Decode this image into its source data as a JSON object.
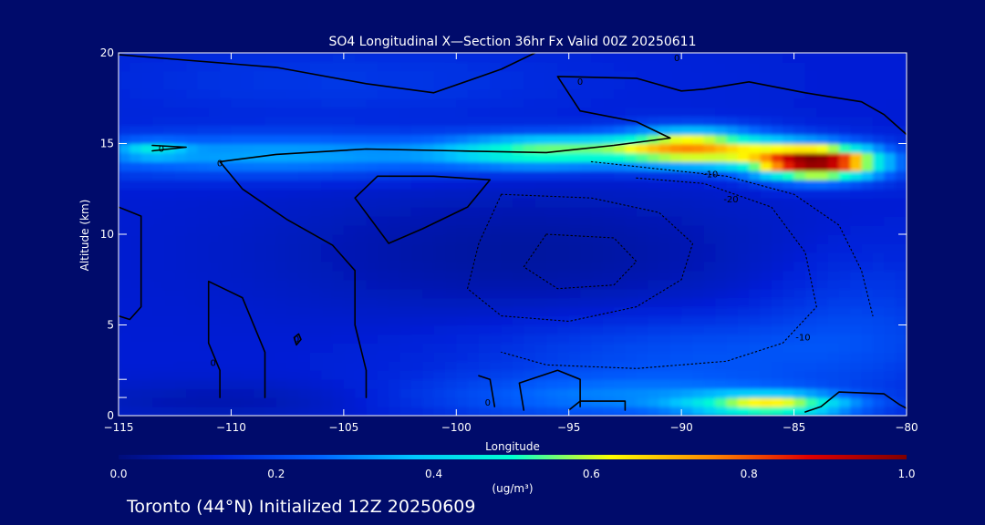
{
  "colors": {
    "background": "#000b6b",
    "foreground": "#ffffff",
    "contour": "#000000"
  },
  "chart_data": {
    "type": "heatmap",
    "title": "SO4 Longitudinal X—Section 36hr  Fx Valid 00Z 20250611",
    "xlabel": "Longitude",
    "ylabel": "Altitude (km)",
    "xlim": [
      -115,
      -80
    ],
    "ylim": [
      0,
      20
    ],
    "x_ticks": [
      -115,
      -110,
      -105,
      -100,
      -95,
      -90,
      -85,
      -80
    ],
    "x_tick_labels": [
      "−115",
      "−110",
      "−105",
      "−100",
      "−95",
      "−90",
      "−85",
      "−80"
    ],
    "y_ticks": [
      0,
      5,
      10,
      15,
      20
    ],
    "y_tick_labels": [
      "0",
      "5",
      "10",
      "15",
      "20"
    ],
    "y_minor_ticks": [
      1,
      2
    ],
    "colorbar": {
      "label": "(ug/m³)",
      "range": [
        0,
        1
      ],
      "ticks": [
        0.0,
        0.2,
        0.4,
        0.6,
        0.8,
        1.0
      ],
      "tick_labels": [
        "0.0",
        "0.2",
        "0.4",
        "0.6",
        "0.8",
        "1.0"
      ],
      "colormap": [
        "#000d7a",
        "#0020d8",
        "#0060ff",
        "#00c8ff",
        "#00ffd0",
        "#ffff00",
        "#ff8c00",
        "#e00000",
        "#800000"
      ]
    },
    "field": {
      "background_value": 0.12,
      "features": [
        {
          "name": "upper-plume-core",
          "lon": -84,
          "alt": 14.0,
          "sigma_lon": 2.0,
          "sigma_alt": 0.65,
          "value": 0.9
        },
        {
          "name": "upper-plume-mid",
          "lon": -89.5,
          "alt": 14.8,
          "sigma_lon": 2.5,
          "sigma_alt": 0.7,
          "value": 0.58
        },
        {
          "name": "upper-plume-west",
          "lon": -96,
          "alt": 14.6,
          "sigma_lon": 3.0,
          "sigma_alt": 0.6,
          "value": 0.36
        },
        {
          "name": "upper-band-west",
          "lon": -108,
          "alt": 14.4,
          "sigma_lon": 8.0,
          "sigma_alt": 0.8,
          "value": 0.22
        },
        {
          "name": "upper-band-tip",
          "lon": -113.5,
          "alt": 14.7,
          "sigma_lon": 1.0,
          "sigma_alt": 0.3,
          "value": 0.18
        },
        {
          "name": "boundary-layer-east",
          "lon": -86,
          "alt": 0.6,
          "sigma_lon": 2.5,
          "sigma_alt": 0.45,
          "value": 0.45
        },
        {
          "name": "boundary-layer-mid",
          "lon": -93,
          "alt": 1.0,
          "sigma_lon": 6.0,
          "sigma_alt": 0.9,
          "value": 0.15
        },
        {
          "name": "lower-layer",
          "lon": -89,
          "alt": 3.5,
          "sigma_lon": 7.0,
          "sigma_alt": 1.5,
          "value": 0.1
        },
        {
          "name": "mid-tropo-east",
          "lon": -82,
          "alt": 6.0,
          "sigma_lon": 3.0,
          "sigma_alt": 2.5,
          "value": 0.06
        },
        {
          "name": "stratosphere-west",
          "lon": -105,
          "alt": 18.5,
          "sigma_lon": 8.0,
          "sigma_alt": 1.5,
          "value": 0.05
        },
        {
          "name": "clean-core-mid",
          "lon": -97,
          "alt": 9.0,
          "sigma_lon": 8.0,
          "sigma_alt": 2.5,
          "value": -0.07
        },
        {
          "name": "clean-surface-west",
          "lon": -110,
          "alt": 0.8,
          "sigma_lon": 5.0,
          "sigma_alt": 0.8,
          "value": -0.05
        }
      ]
    },
    "contours": [
      {
        "value": 0,
        "style": "solid",
        "label": "0",
        "points": [
          [
            -115,
            19.9
          ],
          [
            -112,
            19.6
          ],
          [
            -108,
            19.2
          ],
          [
            -104,
            18.3
          ],
          [
            -101,
            17.8
          ],
          [
            -98,
            19.1
          ],
          [
            -96.5,
            20
          ]
        ]
      },
      {
        "value": 0,
        "style": "solid",
        "label": "0",
        "points": [
          [
            -113.5,
            14.6
          ],
          [
            -112,
            14.8
          ],
          [
            -113.5,
            14.9
          ]
        ]
      },
      {
        "value": 0,
        "style": "solid",
        "label": "0",
        "points": [
          [
            -110.5,
            14.0
          ],
          [
            -108,
            14.4
          ],
          [
            -104,
            14.7
          ],
          [
            -100,
            14.6
          ],
          [
            -96,
            14.5
          ],
          [
            -93,
            14.9
          ],
          [
            -90.5,
            15.3
          ],
          [
            -92,
            16.2
          ],
          [
            -94.5,
            16.8
          ],
          [
            -95.5,
            18.7
          ],
          [
            -92,
            18.6
          ],
          [
            -90,
            17.9
          ],
          [
            -89,
            18.0
          ],
          [
            -87,
            18.4
          ],
          [
            -84.5,
            17.8
          ],
          [
            -82,
            17.3
          ],
          [
            -81,
            16.6
          ],
          [
            -80,
            15.5
          ]
        ]
      },
      {
        "value": 0,
        "style": "solid",
        "label": "",
        "points": [
          [
            -110.5,
            14.0
          ],
          [
            -109.5,
            12.5
          ],
          [
            -107.5,
            10.8
          ],
          [
            -105.5,
            9.4
          ],
          [
            -104.5,
            8.0
          ],
          [
            -104.5,
            5.0
          ],
          [
            -104,
            2.5
          ],
          [
            -104,
            1.0
          ]
        ]
      },
      {
        "value": 0,
        "style": "solid",
        "label": "",
        "points": [
          [
            -103.5,
            13.2
          ],
          [
            -101,
            13.2
          ],
          [
            -98.5,
            13.0
          ],
          [
            -99.5,
            11.5
          ],
          [
            -101.5,
            10.3
          ],
          [
            -103,
            9.5
          ],
          [
            -104.5,
            12.0
          ],
          [
            -103.5,
            13.2
          ]
        ]
      },
      {
        "value": 0,
        "style": "solid",
        "label": "",
        "points": [
          [
            -115,
            11.5
          ],
          [
            -114,
            11.0
          ],
          [
            -114,
            6.0
          ],
          [
            -114.5,
            5.3
          ],
          [
            -115,
            5.5
          ]
        ]
      },
      {
        "value": 0,
        "style": "solid",
        "label": "0",
        "points": [
          [
            -107.2,
            4.3
          ],
          [
            -107.0,
            4.5
          ],
          [
            -106.9,
            4.2
          ],
          [
            -107.1,
            3.9
          ],
          [
            -107.2,
            4.3
          ]
        ]
      },
      {
        "value": 0,
        "style": "solid",
        "label": "0",
        "points": [
          [
            -108.5,
            1.0
          ],
          [
            -108.5,
            3.5
          ],
          [
            -109.5,
            6.5
          ],
          [
            -111,
            7.4
          ],
          [
            -111,
            4.0
          ],
          [
            -110.5,
            2.5
          ],
          [
            -110.5,
            1.0
          ]
        ]
      },
      {
        "value": 0,
        "style": "solid",
        "label": "0",
        "points": [
          [
            -99,
            2.2
          ],
          [
            -98.5,
            2.0
          ],
          [
            -98.3,
            0.5
          ]
        ]
      },
      {
        "value": 0,
        "style": "solid",
        "label": "",
        "points": [
          [
            -97.0,
            0.3
          ],
          [
            -97.2,
            1.8
          ],
          [
            -95.5,
            2.5
          ],
          [
            -94.5,
            2.0
          ],
          [
            -94.5,
            0.5
          ]
        ]
      },
      {
        "value": 0,
        "style": "solid",
        "label": "",
        "points": [
          [
            -95,
            0.3
          ],
          [
            -94.5,
            0.8
          ],
          [
            -92.5,
            0.8
          ],
          [
            -92.5,
            0.3
          ]
        ]
      },
      {
        "value": 0,
        "style": "solid",
        "label": "",
        "points": [
          [
            -84.5,
            0.2
          ],
          [
            -83.8,
            0.5
          ],
          [
            -83,
            1.3
          ],
          [
            -81,
            1.2
          ],
          [
            -80.3,
            0.6
          ],
          [
            -80,
            0.4
          ]
        ]
      },
      {
        "value": -10,
        "style": "dotted",
        "label": "-10",
        "points": [
          [
            -94,
            14.0
          ],
          [
            -91,
            13.6
          ],
          [
            -88,
            13.2
          ],
          [
            -85,
            12.2
          ],
          [
            -83,
            10.5
          ],
          [
            -82,
            8.0
          ],
          [
            -81.5,
            5.5
          ]
        ]
      },
      {
        "value": -10,
        "style": "dotted",
        "label": "-10",
        "points": [
          [
            -92,
            13.1
          ],
          [
            -89,
            12.8
          ],
          [
            -86,
            11.5
          ],
          [
            -84.5,
            9.0
          ],
          [
            -84,
            6.0
          ],
          [
            -85.5,
            4.0
          ],
          [
            -88,
            3.0
          ],
          [
            -92,
            2.6
          ],
          [
            -96,
            2.8
          ],
          [
            -98,
            3.5
          ]
        ]
      },
      {
        "value": -20,
        "style": "dotted",
        "label": "-20",
        "points": [
          [
            -98,
            12.2
          ],
          [
            -94,
            12.0
          ],
          [
            -91,
            11.2
          ],
          [
            -89.5,
            9.5
          ],
          [
            -90,
            7.5
          ],
          [
            -92,
            6.0
          ],
          [
            -95,
            5.2
          ],
          [
            -98,
            5.5
          ],
          [
            -99.5,
            7.0
          ],
          [
            -99,
            9.5
          ],
          [
            -98,
            12.2
          ]
        ]
      },
      {
        "value": -30,
        "style": "dotted",
        "label": "",
        "points": [
          [
            -96,
            10.0
          ],
          [
            -93,
            9.8
          ],
          [
            -92,
            8.5
          ],
          [
            -93,
            7.2
          ],
          [
            -95.5,
            7.0
          ],
          [
            -97,
            8.2
          ],
          [
            -96,
            10.0
          ]
        ]
      }
    ],
    "contour_labels": [
      {
        "text": "0",
        "lon": -113.1,
        "alt": 14.7
      },
      {
        "text": "0",
        "lon": -110.5,
        "alt": 13.9
      },
      {
        "text": "0",
        "lon": -94.5,
        "alt": 18.4
      },
      {
        "text": "0",
        "lon": -90.2,
        "alt": 19.7
      },
      {
        "text": "0",
        "lon": -107.1,
        "alt": 4.2
      },
      {
        "text": "0",
        "lon": -110.8,
        "alt": 2.9
      },
      {
        "text": "0",
        "lon": -98.6,
        "alt": 0.7
      },
      {
        "text": "-10",
        "lon": -88.7,
        "alt": 13.3
      },
      {
        "text": "-20",
        "lon": -87.8,
        "alt": 11.9
      },
      {
        "text": "-10",
        "lon": -84.6,
        "alt": 4.3
      }
    ]
  },
  "footer": {
    "caption": "Toronto (44°N) Initialized 12Z 20250609"
  }
}
